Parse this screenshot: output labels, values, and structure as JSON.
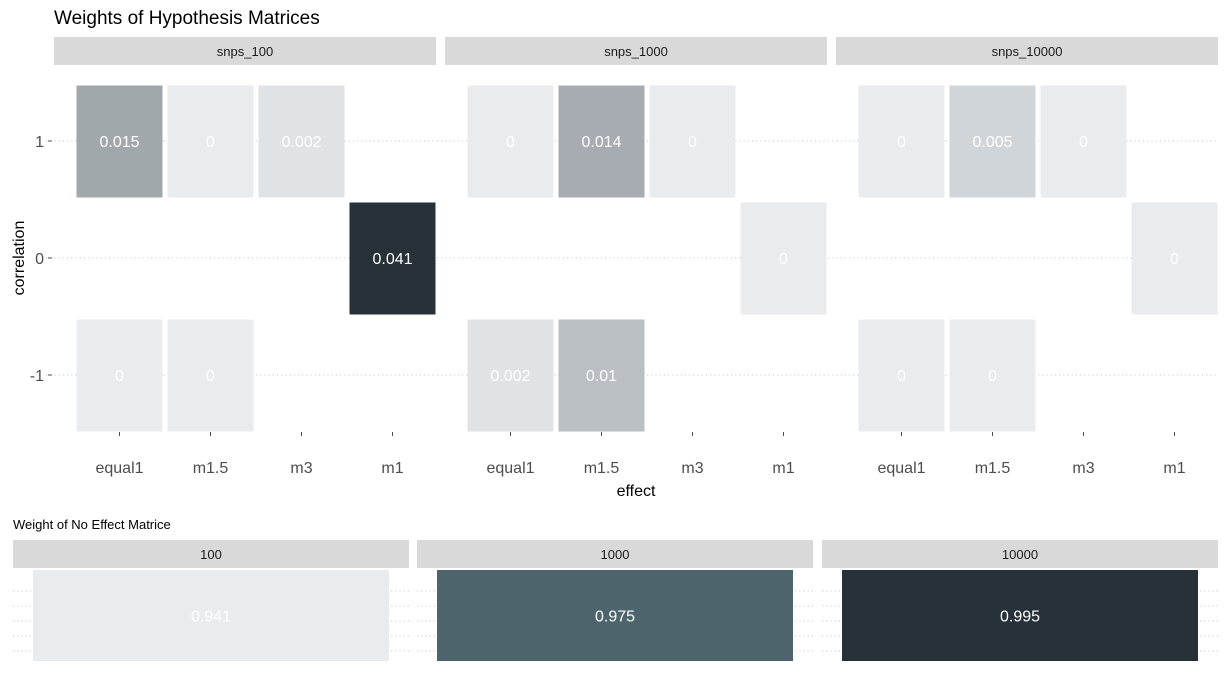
{
  "chart_data": [
    {
      "type": "heatmap",
      "title": "Weights of Hypothesis Matrices",
      "xlabel": "effect",
      "ylabel": "correlation",
      "x_categories": [
        "equal1",
        "m1.5",
        "m3",
        "m1"
      ],
      "y_categories": [
        "1",
        "0",
        "-1"
      ],
      "facets": [
        {
          "name": "snps_100",
          "cells": [
            {
              "x": "equal1",
              "y": "1",
              "value": 0.015,
              "label": "0.015"
            },
            {
              "x": "m1.5",
              "y": "1",
              "value": 0,
              "label": "0"
            },
            {
              "x": "m3",
              "y": "1",
              "value": 0.002,
              "label": "0.002"
            },
            {
              "x": "m1",
              "y": "0",
              "value": 0.041,
              "label": "0.041"
            },
            {
              "x": "equal1",
              "y": "-1",
              "value": 0,
              "label": "0"
            },
            {
              "x": "m1.5",
              "y": "-1",
              "value": 0,
              "label": "0"
            }
          ]
        },
        {
          "name": "snps_1000",
          "cells": [
            {
              "x": "equal1",
              "y": "1",
              "value": 0,
              "label": "0"
            },
            {
              "x": "m1.5",
              "y": "1",
              "value": 0.014,
              "label": "0.014"
            },
            {
              "x": "m3",
              "y": "1",
              "value": 0,
              "label": "0"
            },
            {
              "x": "m1",
              "y": "0",
              "value": 0,
              "label": "0"
            },
            {
              "x": "equal1",
              "y": "-1",
              "value": 0.002,
              "label": "0.002"
            },
            {
              "x": "m1.5",
              "y": "-1",
              "value": 0.01,
              "label": "0.01"
            }
          ]
        },
        {
          "name": "snps_10000",
          "cells": [
            {
              "x": "equal1",
              "y": "1",
              "value": 0,
              "label": "0"
            },
            {
              "x": "m1.5",
              "y": "1",
              "value": 0.005,
              "label": "0.005"
            },
            {
              "x": "m3",
              "y": "1",
              "value": 0,
              "label": "0"
            },
            {
              "x": "m1",
              "y": "0",
              "value": 0,
              "label": "0"
            },
            {
              "x": "equal1",
              "y": "-1",
              "value": 0,
              "label": "0"
            },
            {
              "x": "m1.5",
              "y": "-1",
              "value": 0,
              "label": "0"
            }
          ]
        }
      ],
      "color_scale": {
        "low": "#e8ecef",
        "high": "#263238",
        "domain": [
          0,
          0.041
        ]
      },
      "grid": "dotted major gridlines",
      "legend": "none"
    },
    {
      "type": "heatmap",
      "title": "Weight of No Effect Matrice",
      "facets": [
        {
          "name": "100",
          "value": 0.941,
          "label": "0.941"
        },
        {
          "name": "1000",
          "value": 0.975,
          "label": "0.975"
        },
        {
          "name": "10000",
          "value": 0.995,
          "label": "0.995"
        }
      ],
      "color_scale": {
        "low": "#e8ecef",
        "high": "#263238",
        "domain": [
          0.941,
          0.995
        ]
      },
      "grid": "dotted major gridlines",
      "legend": "none"
    }
  ]
}
